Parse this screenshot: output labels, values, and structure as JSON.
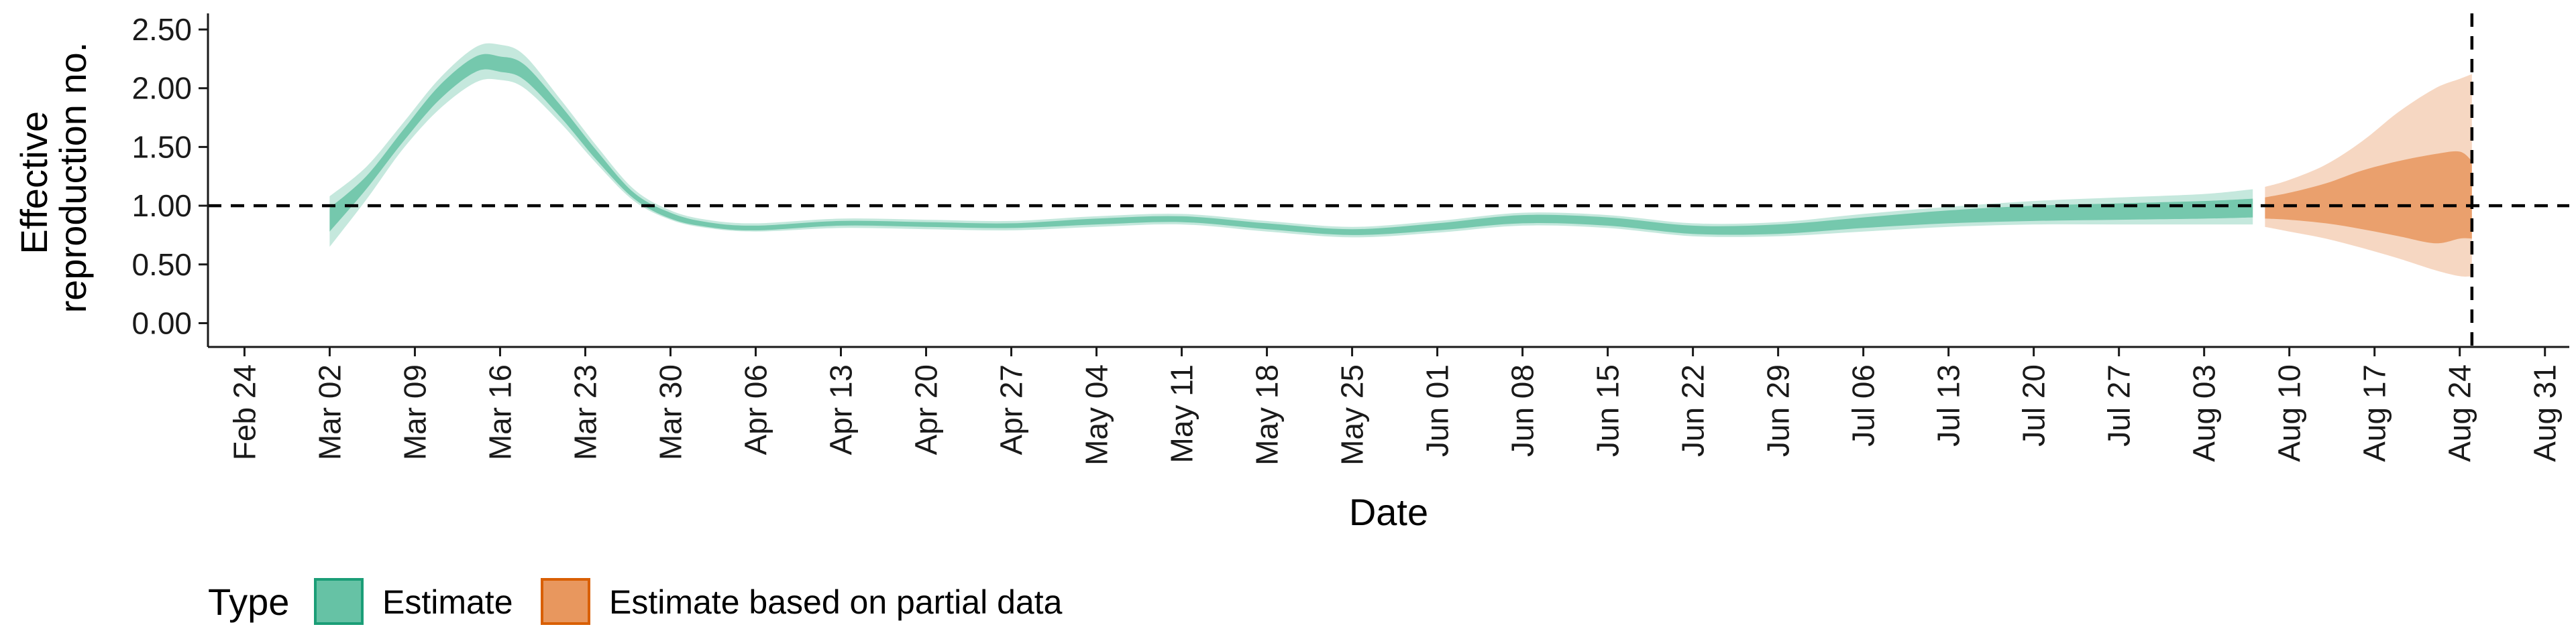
{
  "chart_data": {
    "type": "area",
    "xlabel": "Date",
    "ylabel": [
      "Effective",
      "reproduction no."
    ],
    "x_range": [
      "2020-02-21",
      "2020-09-02"
    ],
    "ylim": [
      -0.1,
      2.58
    ],
    "y_ticks": [
      "0.00",
      "0.50",
      "1.00",
      "1.50",
      "2.00",
      "2.50"
    ],
    "x_ticks": [
      {
        "date": "2020-02-24",
        "label": "Feb 24"
      },
      {
        "date": "2020-03-02",
        "label": "Mar 02"
      },
      {
        "date": "2020-03-09",
        "label": "Mar 09"
      },
      {
        "date": "2020-03-16",
        "label": "Mar 16"
      },
      {
        "date": "2020-03-23",
        "label": "Mar 23"
      },
      {
        "date": "2020-03-30",
        "label": "Mar 30"
      },
      {
        "date": "2020-04-06",
        "label": "Apr 06"
      },
      {
        "date": "2020-04-13",
        "label": "Apr 13"
      },
      {
        "date": "2020-04-20",
        "label": "Apr 20"
      },
      {
        "date": "2020-04-27",
        "label": "Apr 27"
      },
      {
        "date": "2020-05-04",
        "label": "May 04"
      },
      {
        "date": "2020-05-11",
        "label": "May 11"
      },
      {
        "date": "2020-05-18",
        "label": "May 18"
      },
      {
        "date": "2020-05-25",
        "label": "May 25"
      },
      {
        "date": "2020-06-01",
        "label": "Jun 01"
      },
      {
        "date": "2020-06-08",
        "label": "Jun 08"
      },
      {
        "date": "2020-06-15",
        "label": "Jun 15"
      },
      {
        "date": "2020-06-22",
        "label": "Jun 22"
      },
      {
        "date": "2020-06-29",
        "label": "Jun 29"
      },
      {
        "date": "2020-07-06",
        "label": "Jul 06"
      },
      {
        "date": "2020-07-13",
        "label": "Jul 13"
      },
      {
        "date": "2020-07-20",
        "label": "Jul 20"
      },
      {
        "date": "2020-07-27",
        "label": "Jul 27"
      },
      {
        "date": "2020-08-03",
        "label": "Aug 03"
      },
      {
        "date": "2020-08-10",
        "label": "Aug 10"
      },
      {
        "date": "2020-08-17",
        "label": "Aug 17"
      },
      {
        "date": "2020-08-24",
        "label": "Aug 24"
      },
      {
        "date": "2020-08-31",
        "label": "Aug 31"
      }
    ],
    "reference_line_y": 1.0,
    "vertical_line_date": "2020-08-25",
    "grid": false,
    "legend": {
      "title": "Type",
      "position": "bottom-left",
      "entries": [
        {
          "label": "Estimate",
          "fill": "#66c2a5",
          "stroke": "#1b9e77"
        },
        {
          "label": "Estimate based on partial data",
          "fill": "#e8975e",
          "stroke": "#d95f02"
        }
      ]
    },
    "series": [
      {
        "name": "Estimate",
        "color": "#66c2a5",
        "points": [
          {
            "date": "2020-03-02",
            "outer": [
              0.65,
              1.08
            ],
            "inner": [
              0.78,
              0.98
            ]
          },
          {
            "date": "2020-03-05",
            "outer": [
              1.05,
              1.33
            ],
            "inner": [
              1.14,
              1.25
            ]
          },
          {
            "date": "2020-03-08",
            "outer": [
              1.48,
              1.7
            ],
            "inner": [
              1.54,
              1.64
            ]
          },
          {
            "date": "2020-03-11",
            "outer": [
              1.82,
              2.08
            ],
            "inner": [
              1.9,
              2.02
            ]
          },
          {
            "date": "2020-03-14",
            "outer": [
              2.05,
              2.35
            ],
            "inner": [
              2.14,
              2.27
            ]
          },
          {
            "date": "2020-03-16",
            "outer": [
              2.07,
              2.37
            ],
            "inner": [
              2.14,
              2.27
            ]
          },
          {
            "date": "2020-03-18",
            "outer": [
              2.0,
              2.28
            ],
            "inner": [
              2.07,
              2.2
            ]
          },
          {
            "date": "2020-03-21",
            "outer": [
              1.7,
              1.9
            ],
            "inner": [
              1.75,
              1.85
            ]
          },
          {
            "date": "2020-03-24",
            "outer": [
              1.35,
              1.5
            ],
            "inner": [
              1.38,
              1.46
            ]
          },
          {
            "date": "2020-03-27",
            "outer": [
              1.04,
              1.14
            ],
            "inner": [
              1.06,
              1.11
            ]
          },
          {
            "date": "2020-03-30",
            "outer": [
              0.88,
              0.96
            ],
            "inner": [
              0.89,
              0.94
            ]
          },
          {
            "date": "2020-04-02",
            "outer": [
              0.81,
              0.88
            ],
            "inner": [
              0.82,
              0.86
            ]
          },
          {
            "date": "2020-04-06",
            "outer": [
              0.78,
              0.85
            ],
            "inner": [
              0.79,
              0.83
            ]
          },
          {
            "date": "2020-04-13",
            "outer": [
              0.81,
              0.89
            ],
            "inner": [
              0.83,
              0.87
            ]
          },
          {
            "date": "2020-04-20",
            "outer": [
              0.8,
              0.88
            ],
            "inner": [
              0.82,
              0.86
            ]
          },
          {
            "date": "2020-04-27",
            "outer": [
              0.79,
              0.87
            ],
            "inner": [
              0.81,
              0.85
            ]
          },
          {
            "date": "2020-05-04",
            "outer": [
              0.82,
              0.91
            ],
            "inner": [
              0.84,
              0.89
            ]
          },
          {
            "date": "2020-05-11",
            "outer": [
              0.84,
              0.93
            ],
            "inner": [
              0.86,
              0.91
            ]
          },
          {
            "date": "2020-05-18",
            "outer": [
              0.78,
              0.87
            ],
            "inner": [
              0.8,
              0.85
            ]
          },
          {
            "date": "2020-05-25",
            "outer": [
              0.73,
              0.82
            ],
            "inner": [
              0.75,
              0.8
            ]
          },
          {
            "date": "2020-06-01",
            "outer": [
              0.77,
              0.87
            ],
            "inner": [
              0.79,
              0.85
            ]
          },
          {
            "date": "2020-06-08",
            "outer": [
              0.83,
              0.94
            ],
            "inner": [
              0.85,
              0.92
            ]
          },
          {
            "date": "2020-06-15",
            "outer": [
              0.81,
              0.92
            ],
            "inner": [
              0.83,
              0.9
            ]
          },
          {
            "date": "2020-06-22",
            "outer": [
              0.74,
              0.85
            ],
            "inner": [
              0.76,
              0.83
            ]
          },
          {
            "date": "2020-06-29",
            "outer": [
              0.74,
              0.86
            ],
            "inner": [
              0.76,
              0.84
            ]
          },
          {
            "date": "2020-07-06",
            "outer": [
              0.78,
              0.93
            ],
            "inner": [
              0.81,
              0.9
            ]
          },
          {
            "date": "2020-07-13",
            "outer": [
              0.82,
              0.99
            ],
            "inner": [
              0.85,
              0.96
            ]
          },
          {
            "date": "2020-07-20",
            "outer": [
              0.84,
              1.04
            ],
            "inner": [
              0.87,
              1.0
            ]
          },
          {
            "date": "2020-07-27",
            "outer": [
              0.84,
              1.07
            ],
            "inner": [
              0.88,
              1.02
            ]
          },
          {
            "date": "2020-08-03",
            "outer": [
              0.84,
              1.1
            ],
            "inner": [
              0.89,
              1.04
            ]
          },
          {
            "date": "2020-08-07",
            "outer": [
              0.84,
              1.14
            ],
            "inner": [
              0.9,
              1.06
            ]
          }
        ]
      },
      {
        "name": "Estimate based on partial data",
        "color": "#e8975e",
        "points": [
          {
            "date": "2020-08-08",
            "outer": [
              0.82,
              1.16
            ],
            "inner": [
              0.89,
              1.07
            ]
          },
          {
            "date": "2020-08-10",
            "outer": [
              0.78,
              1.22
            ],
            "inner": [
              0.88,
              1.11
            ]
          },
          {
            "date": "2020-08-13",
            "outer": [
              0.72,
              1.35
            ],
            "inner": [
              0.85,
              1.19
            ]
          },
          {
            "date": "2020-08-16",
            "outer": [
              0.64,
              1.55
            ],
            "inner": [
              0.8,
              1.3
            ]
          },
          {
            "date": "2020-08-19",
            "outer": [
              0.55,
              1.8
            ],
            "inner": [
              0.74,
              1.38
            ]
          },
          {
            "date": "2020-08-22",
            "outer": [
              0.45,
              2.0
            ],
            "inner": [
              0.68,
              1.44
            ]
          },
          {
            "date": "2020-08-24",
            "outer": [
              0.4,
              2.08
            ],
            "inner": [
              0.72,
              1.46
            ]
          },
          {
            "date": "2020-08-25",
            "outer": [
              0.4,
              2.12
            ],
            "inner": [
              0.72,
              1.38
            ]
          }
        ]
      }
    ]
  }
}
